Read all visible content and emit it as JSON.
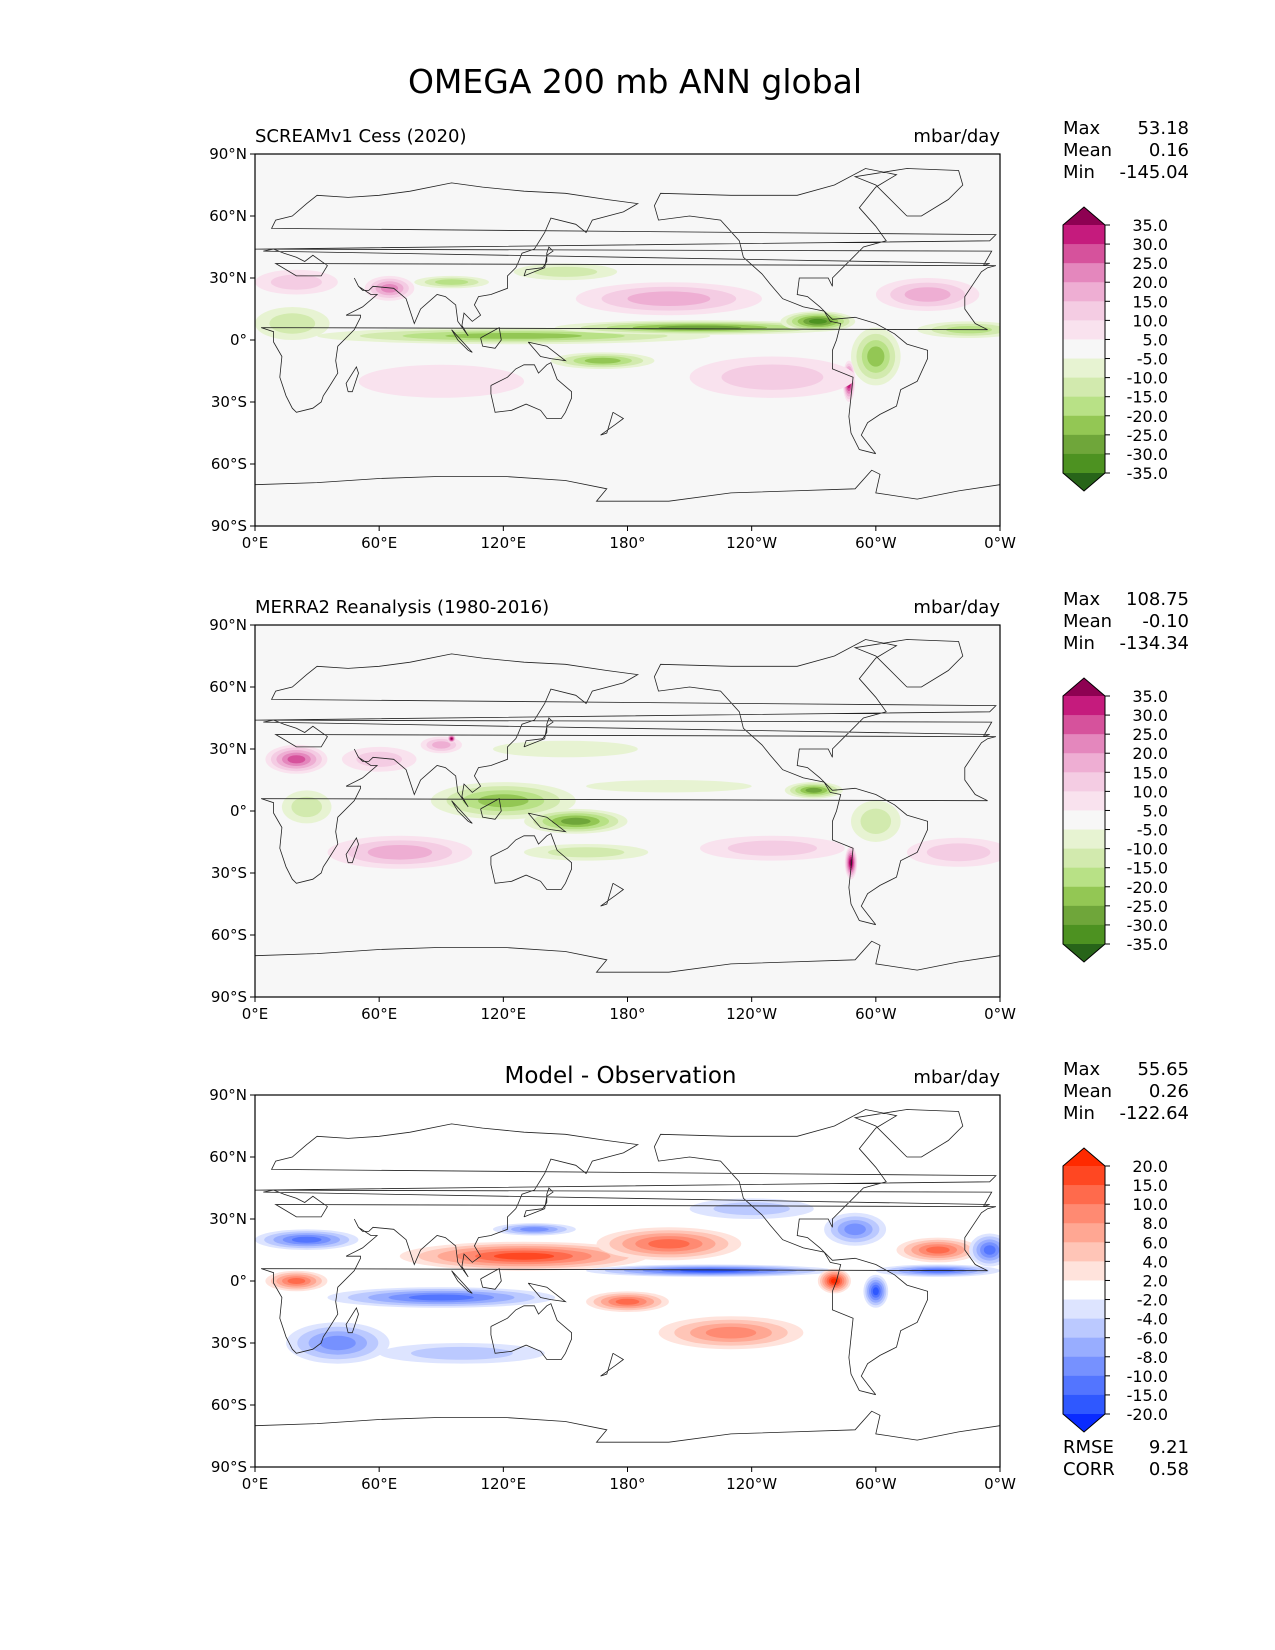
{
  "figure": {
    "title": "OMEGA 200 mb ANN global"
  },
  "chart_data": [
    {
      "type": "heatmap",
      "name": "test",
      "title": "SCREAMv1 Cess (2020)",
      "units": "mbar/day",
      "stats": {
        "max_label": "Max",
        "max": "53.18",
        "mean_label": "Mean",
        "mean": "0.16",
        "min_label": "Min",
        "min": "-145.04"
      },
      "xticks": [
        "0°E",
        "60°E",
        "120°E",
        "180°",
        "120°W",
        "60°W",
        "0°W"
      ],
      "yticks": [
        "90°N",
        "60°N",
        "30°N",
        "0°",
        "30°S",
        "60°S",
        "90°S"
      ],
      "xlim": [
        0,
        360
      ],
      "ylim": [
        -90,
        90
      ],
      "colorbar": {
        "labels": [
          "35.0",
          "30.0",
          "25.0",
          "20.0",
          "15.0",
          "10.0",
          "5.0",
          "-5.0",
          "-10.0",
          "-15.0",
          "-20.0",
          "-25.0",
          "-30.0",
          "-35.0"
        ],
        "colors": [
          "#8e0152",
          "#c51b7d",
          "#d6529c",
          "#e487bd",
          "#eeaed3",
          "#f4cce3",
          "#f9e2ee",
          "#f7f7f7",
          "#e7f3d2",
          "#d2eaae",
          "#b8e186",
          "#93c754",
          "#6fa63a",
          "#4d9221",
          "#276419"
        ]
      },
      "features": [
        {
          "lon": 125,
          "lat": 2,
          "rx": 95,
          "ry": 4,
          "v": -25
        },
        {
          "lon": 215,
          "lat": 6,
          "rx": 70,
          "ry": 3.5,
          "v": -28
        },
        {
          "lon": 272,
          "lat": 9,
          "rx": 18,
          "ry": 5,
          "v": -35
        },
        {
          "lon": 345,
          "lat": 5,
          "rx": 25,
          "ry": 4,
          "v": -20
        },
        {
          "lon": 18,
          "lat": 8,
          "rx": 18,
          "ry": 8,
          "v": -15
        },
        {
          "lon": 300,
          "lat": -8,
          "rx": 12,
          "ry": 14,
          "v": -22
        },
        {
          "lon": 168,
          "lat": -10,
          "rx": 25,
          "ry": 4,
          "v": -25
        },
        {
          "lon": 95,
          "lat": 28,
          "rx": 18,
          "ry": 3,
          "v": -20
        },
        {
          "lon": 150,
          "lat": 33,
          "rx": 25,
          "ry": 4,
          "v": -12
        },
        {
          "lon": 287,
          "lat": -20,
          "rx": 3,
          "ry": 10,
          "v": 40
        },
        {
          "lon": 200,
          "lat": 20,
          "rx": 45,
          "ry": 8,
          "v": 15
        },
        {
          "lon": 250,
          "lat": -18,
          "rx": 40,
          "ry": 10,
          "v": 12
        },
        {
          "lon": 65,
          "lat": 25,
          "rx": 12,
          "ry": 6,
          "v": 22
        },
        {
          "lon": 325,
          "lat": 22,
          "rx": 25,
          "ry": 8,
          "v": 15
        },
        {
          "lon": 90,
          "lat": -20,
          "rx": 40,
          "ry": 8,
          "v": 8
        },
        {
          "lon": 20,
          "lat": 28,
          "rx": 20,
          "ry": 6,
          "v": 10
        }
      ]
    },
    {
      "type": "heatmap",
      "name": "reference",
      "title": "MERRA2 Reanalysis (1980-2016)",
      "units": "mbar/day",
      "stats": {
        "max_label": "Max",
        "max": "108.75",
        "mean_label": "Mean",
        "mean": "-0.10",
        "min_label": "Min",
        "min": "-134.34"
      },
      "xticks": [
        "0°E",
        "60°E",
        "120°E",
        "180°",
        "120°W",
        "60°W",
        "0°W"
      ],
      "yticks": [
        "90°N",
        "60°N",
        "30°N",
        "0°",
        "30°S",
        "60°S",
        "90°S"
      ],
      "xlim": [
        0,
        360
      ],
      "ylim": [
        -90,
        90
      ],
      "colorbar": {
        "labels": [
          "35.0",
          "30.0",
          "25.0",
          "20.0",
          "15.0",
          "10.0",
          "5.0",
          "-5.0",
          "-10.0",
          "-15.0",
          "-20.0",
          "-25.0",
          "-30.0",
          "-35.0"
        ],
        "colors": [
          "#8e0152",
          "#c51b7d",
          "#d6529c",
          "#e487bd",
          "#eeaed3",
          "#f4cce3",
          "#f9e2ee",
          "#f7f7f7",
          "#e7f3d2",
          "#d2eaae",
          "#b8e186",
          "#93c754",
          "#6fa63a",
          "#4d9221",
          "#276419"
        ]
      },
      "features": [
        {
          "lon": 120,
          "lat": 5,
          "rx": 35,
          "ry": 9,
          "v": -25
        },
        {
          "lon": 155,
          "lat": -5,
          "rx": 25,
          "ry": 6,
          "v": -28
        },
        {
          "lon": 270,
          "lat": 10,
          "rx": 14,
          "ry": 4,
          "v": -30
        },
        {
          "lon": 300,
          "lat": -5,
          "rx": 12,
          "ry": 10,
          "v": -12
        },
        {
          "lon": 25,
          "lat": 2,
          "rx": 12,
          "ry": 8,
          "v": -15
        },
        {
          "lon": 150,
          "lat": 30,
          "rx": 35,
          "ry": 4,
          "v": -10
        },
        {
          "lon": 200,
          "lat": 12,
          "rx": 40,
          "ry": 3,
          "v": -8
        },
        {
          "lon": 160,
          "lat": -20,
          "rx": 30,
          "ry": 4,
          "v": -12
        },
        {
          "lon": 20,
          "lat": 25,
          "rx": 15,
          "ry": 7,
          "v": 28
        },
        {
          "lon": 288,
          "lat": -25,
          "rx": 3,
          "ry": 8,
          "v": 40
        },
        {
          "lon": 70,
          "lat": -20,
          "rx": 35,
          "ry": 8,
          "v": 15
        },
        {
          "lon": 250,
          "lat": -18,
          "rx": 35,
          "ry": 6,
          "v": 10
        },
        {
          "lon": 340,
          "lat": -20,
          "rx": 25,
          "ry": 7,
          "v": 12
        },
        {
          "lon": 60,
          "lat": 25,
          "rx": 18,
          "ry": 6,
          "v": 10
        },
        {
          "lon": 90,
          "lat": 32,
          "rx": 10,
          "ry": 4,
          "v": 15
        },
        {
          "lon": 95,
          "lat": 35,
          "rx": 2,
          "ry": 2,
          "v": 40
        }
      ]
    },
    {
      "type": "heatmap",
      "name": "diff",
      "title": "Model - Observation",
      "units": "mbar/day",
      "stats": {
        "max_label": "Max",
        "max": "55.65",
        "mean_label": "Mean",
        "mean": "0.26",
        "min_label": "Min",
        "min": "-122.64"
      },
      "metrics": {
        "rmse_label": "RMSE",
        "rmse": "9.21",
        "corr_label": "CORR",
        "corr": "0.58"
      },
      "xticks": [
        "0°E",
        "60°E",
        "120°E",
        "180°",
        "120°W",
        "60°W",
        "0°W"
      ],
      "yticks": [
        "90°N",
        "60°N",
        "30°N",
        "0°",
        "30°S",
        "60°S",
        "90°S"
      ],
      "xlim": [
        0,
        360
      ],
      "ylim": [
        -90,
        90
      ],
      "colorbar": {
        "labels": [
          "20.0",
          "15.0",
          "10.0",
          "8.0",
          "6.0",
          "4.0",
          "2.0",
          "-2.0",
          "-4.0",
          "-6.0",
          "-8.0",
          "-10.0",
          "-15.0",
          "-20.0"
        ],
        "colors": [
          "#ff2a00",
          "#ff4722",
          "#ff6a4c",
          "#ff8a72",
          "#ffa793",
          "#ffc5b7",
          "#ffe3dc",
          "#ffffff",
          "#dde4ff",
          "#bbc9ff",
          "#98adff",
          "#7691ff",
          "#5375ff",
          "#2f58ff",
          "#0a2bff"
        ]
      },
      "features": [
        {
          "lon": 130,
          "lat": 12,
          "rx": 60,
          "ry": 7,
          "v": 15
        },
        {
          "lon": 200,
          "lat": 18,
          "rx": 35,
          "ry": 8,
          "v": 10
        },
        {
          "lon": 220,
          "lat": 5,
          "rx": 60,
          "ry": 3,
          "v": -18
        },
        {
          "lon": 330,
          "lat": 5,
          "rx": 30,
          "ry": 3,
          "v": -15
        },
        {
          "lon": 90,
          "lat": -8,
          "rx": 55,
          "ry": 5,
          "v": -12
        },
        {
          "lon": 25,
          "lat": 20,
          "rx": 25,
          "ry": 5,
          "v": -15
        },
        {
          "lon": 135,
          "lat": 25,
          "rx": 20,
          "ry": 3,
          "v": -10
        },
        {
          "lon": 20,
          "lat": 0,
          "rx": 15,
          "ry": 5,
          "v": 12
        },
        {
          "lon": 40,
          "lat": -30,
          "rx": 25,
          "ry": 10,
          "v": -10
        },
        {
          "lon": 280,
          "lat": 0,
          "rx": 8,
          "ry": 6,
          "v": 20
        },
        {
          "lon": 300,
          "lat": -5,
          "rx": 6,
          "ry": 8,
          "v": -18
        },
        {
          "lon": 290,
          "lat": 25,
          "rx": 15,
          "ry": 8,
          "v": -10
        },
        {
          "lon": 330,
          "lat": 15,
          "rx": 20,
          "ry": 6,
          "v": 10
        },
        {
          "lon": 180,
          "lat": -10,
          "rx": 20,
          "ry": 5,
          "v": 12
        },
        {
          "lon": 230,
          "lat": -25,
          "rx": 35,
          "ry": 8,
          "v": 8
        },
        {
          "lon": 100,
          "lat": -35,
          "rx": 40,
          "ry": 5,
          "v": -5
        },
        {
          "lon": 355,
          "lat": 15,
          "rx": 10,
          "ry": 8,
          "v": -15
        },
        {
          "lon": 240,
          "lat": 35,
          "rx": 30,
          "ry": 5,
          "v": -6
        }
      ]
    }
  ]
}
